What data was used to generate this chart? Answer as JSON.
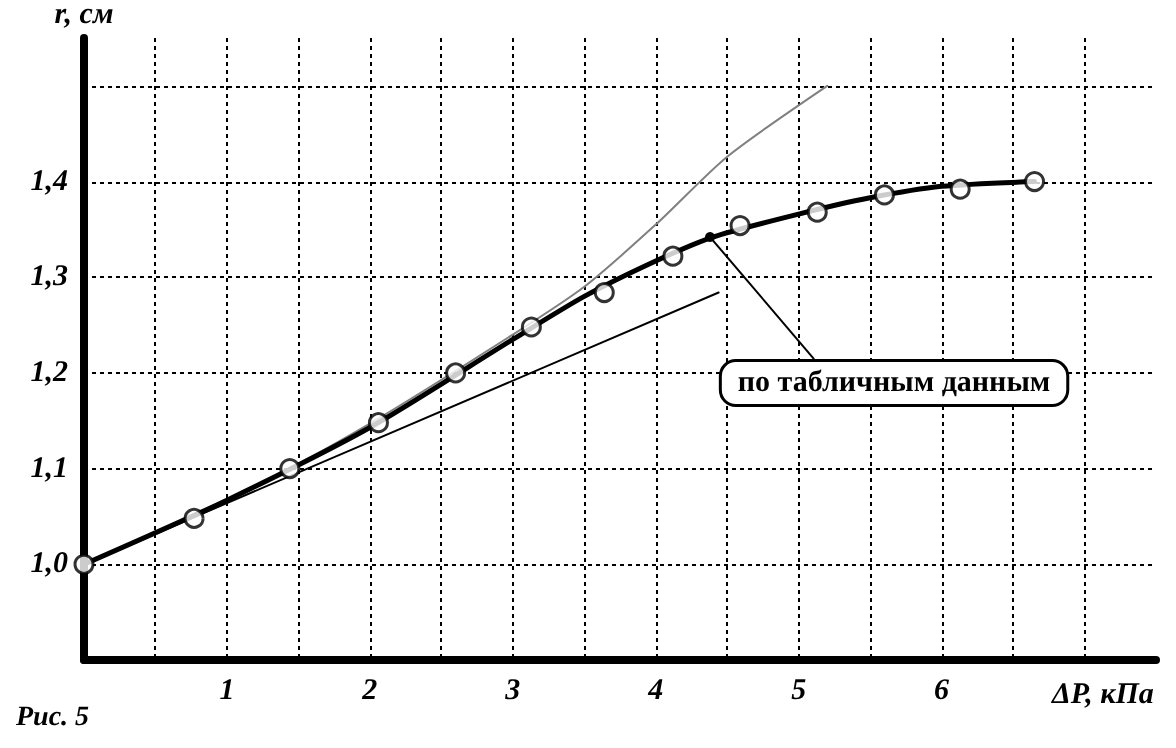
{
  "chart_data": {
    "type": "line",
    "xlabel": "ΔP, кПа",
    "ylabel": "r, см",
    "xlim": [
      0,
      7.5
    ],
    "ylim": [
      0.9,
      1.55
    ],
    "xticks": [
      {
        "value": 0.5,
        "label": null
      },
      1,
      {
        "value": 1.5,
        "label": null
      },
      2,
      {
        "value": 2.5,
        "label": null
      },
      3,
      {
        "value": 3.5,
        "label": null
      },
      4,
      {
        "value": 4.5,
        "label": null
      },
      5,
      {
        "value": 5.5,
        "label": null
      },
      6,
      {
        "value": 6.5,
        "label": null
      },
      {
        "value": 7,
        "label": null
      }
    ],
    "yticks": [
      {
        "value": 1.0,
        "label": "1,0"
      },
      {
        "value": 1.1,
        "label": "1,1"
      },
      {
        "value": 1.2,
        "label": "1,2"
      },
      {
        "value": 1.3,
        "label": "1,3"
      },
      {
        "value": 1.4,
        "label": "1,4"
      },
      {
        "value": 1.5,
        "label": null
      }
    ],
    "grid": true,
    "line_style": "solid",
    "series": [
      {
        "color": "#808080",
        "marker": "none",
        "x": [
          0,
          1,
          2,
          3,
          3.5,
          4,
          4.5,
          5.2
        ],
        "values": [
          1.0,
          1.065,
          1.147,
          1.24,
          1.29,
          1.355,
          1.426,
          1.5
        ]
      },
      {
        "color": "#000000",
        "marker": "none",
        "x": [
          0,
          4.44
        ],
        "values": [
          1.0,
          1.284
        ]
      },
      {
        "color": "#000000",
        "marker": "none",
        "x": [
          0,
          1,
          2,
          3,
          3.5,
          4,
          4.4,
          5,
          5.5,
          6,
          6.65
        ],
        "values": [
          1.0,
          1.067,
          1.143,
          1.235,
          1.28,
          1.317,
          1.342,
          1.366,
          1.383,
          1.395,
          1.4
        ]
      },
      {
        "type": "scatter",
        "color": "#000000",
        "marker": "circle",
        "x": [
          0,
          0.77,
          1.44,
          2.06,
          2.6,
          3.13,
          3.64,
          4.12,
          4.59,
          5.13,
          5.6,
          6.13,
          6.65
        ],
        "values": [
          1.0,
          1.048,
          1.1,
          1.148,
          1.2,
          1.248,
          1.284,
          1.322,
          1.354,
          1.368,
          1.386,
          1.392,
          1.4
        ]
      }
    ],
    "annotations": [
      {
        "text": "по табличным данным",
        "x": 4.38,
        "y": 1.342
      },
      "Рис. 5"
    ]
  }
}
